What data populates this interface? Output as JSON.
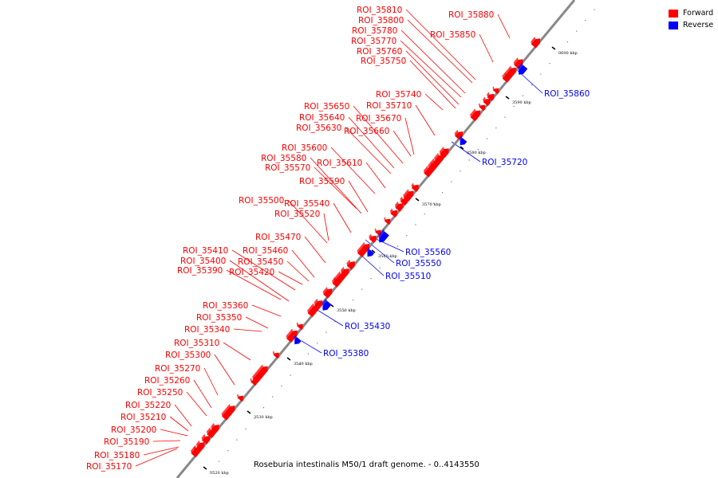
{
  "title": "Roseburia intestinalis M50/1 draft genome. - 0..4143550",
  "legend": [
    {
      "label": "Forward",
      "color": "#ff0000"
    },
    {
      "label": "Reverse",
      "color": "#0000ff"
    }
  ],
  "colors": {
    "forward": "#ff0000",
    "reverse": "#0000ff",
    "backbone": "#888888"
  },
  "axis_ticks": [
    "3520 kbp",
    "3530 kbp",
    "3540 kbp",
    "3550 kbp",
    "3560 kbp",
    "3570 kbp",
    "3580 kbp",
    "3590 kbp",
    "3600 kbp"
  ],
  "features": [
    {
      "name": "ROI_35170",
      "strand": "forward"
    },
    {
      "name": "ROI_35180",
      "strand": "forward"
    },
    {
      "name": "ROI_35190",
      "strand": "forward"
    },
    {
      "name": "ROI_35200",
      "strand": "forward"
    },
    {
      "name": "ROI_35210",
      "strand": "forward"
    },
    {
      "name": "ROI_35220",
      "strand": "forward"
    },
    {
      "name": "ROI_35250",
      "strand": "forward"
    },
    {
      "name": "ROI_35260",
      "strand": "forward"
    },
    {
      "name": "ROI_35270",
      "strand": "forward"
    },
    {
      "name": "ROI_35300",
      "strand": "forward"
    },
    {
      "name": "ROI_35310",
      "strand": "forward"
    },
    {
      "name": "ROI_35340",
      "strand": "forward"
    },
    {
      "name": "ROI_35350",
      "strand": "forward"
    },
    {
      "name": "ROI_35360",
      "strand": "forward"
    },
    {
      "name": "ROI_35390",
      "strand": "forward"
    },
    {
      "name": "ROI_35400",
      "strand": "forward"
    },
    {
      "name": "ROI_35410",
      "strand": "forward"
    },
    {
      "name": "ROI_35420",
      "strand": "forward"
    },
    {
      "name": "ROI_35450",
      "strand": "forward"
    },
    {
      "name": "ROI_35460",
      "strand": "forward"
    },
    {
      "name": "ROI_35470",
      "strand": "forward"
    },
    {
      "name": "ROI_35500",
      "strand": "forward"
    },
    {
      "name": "ROI_35520",
      "strand": "forward"
    },
    {
      "name": "ROI_35540",
      "strand": "forward"
    },
    {
      "name": "ROI_35570",
      "strand": "forward"
    },
    {
      "name": "ROI_35580",
      "strand": "forward"
    },
    {
      "name": "ROI_35590",
      "strand": "forward"
    },
    {
      "name": "ROI_35600",
      "strand": "forward"
    },
    {
      "name": "ROI_35610",
      "strand": "forward"
    },
    {
      "name": "ROI_35630",
      "strand": "forward"
    },
    {
      "name": "ROI_35640",
      "strand": "forward"
    },
    {
      "name": "ROI_35650",
      "strand": "forward"
    },
    {
      "name": "ROI_35660",
      "strand": "forward"
    },
    {
      "name": "ROI_35670",
      "strand": "forward"
    },
    {
      "name": "ROI_35710",
      "strand": "forward"
    },
    {
      "name": "ROI_35740",
      "strand": "forward"
    },
    {
      "name": "ROI_35750",
      "strand": "forward"
    },
    {
      "name": "ROI_35760",
      "strand": "forward"
    },
    {
      "name": "ROI_35770",
      "strand": "forward"
    },
    {
      "name": "ROI_35780",
      "strand": "forward"
    },
    {
      "name": "ROI_35800",
      "strand": "forward"
    },
    {
      "name": "ROI_35810",
      "strand": "forward"
    },
    {
      "name": "ROI_35850",
      "strand": "forward"
    },
    {
      "name": "ROI_35880",
      "strand": "forward"
    },
    {
      "name": "ROI_35380",
      "strand": "reverse"
    },
    {
      "name": "ROI_35430",
      "strand": "reverse"
    },
    {
      "name": "ROI_35510",
      "strand": "reverse"
    },
    {
      "name": "ROI_35550",
      "strand": "reverse"
    },
    {
      "name": "ROI_35560",
      "strand": "reverse"
    },
    {
      "name": "ROI_35720",
      "strand": "reverse"
    },
    {
      "name": "ROI_35860",
      "strand": "reverse"
    }
  ]
}
